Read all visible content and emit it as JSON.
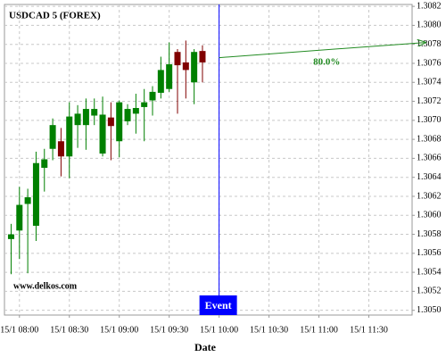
{
  "chart_data": {
    "type": "candlestick",
    "title": "USDCAD 5 (FOREX)",
    "watermark": "www.delkos.com",
    "x_label": "Date",
    "x": [
      "15/1 07:55",
      "15/1 08:00",
      "15/1 08:05",
      "15/1 08:10",
      "15/1 08:15",
      "15/1 08:20",
      "15/1 08:25",
      "15/1 08:30",
      "15/1 08:35",
      "15/1 08:40",
      "15/1 08:45",
      "15/1 08:50",
      "15/1 08:55",
      "15/1 09:00",
      "15/1 09:05",
      "15/1 09:10",
      "15/1 09:15",
      "15/1 09:20",
      "15/1 09:25",
      "15/1 09:30",
      "15/1 09:35",
      "15/1 09:40",
      "15/1 09:45",
      "15/1 09:50"
    ],
    "open": [
      1.30575,
      1.30584,
      1.30612,
      1.30589,
      1.3065,
      1.3067,
      1.30678,
      1.30662,
      1.30695,
      1.30695,
      1.30705,
      1.30665,
      1.30703,
      1.30678,
      1.30699,
      1.30707,
      1.30714,
      1.30721,
      1.30729,
      1.30733,
      1.30772,
      1.30761,
      1.3074,
      1.30773
    ],
    "high": [
      1.30591,
      1.3063,
      1.30628,
      1.30667,
      1.3067,
      1.30702,
      1.30692,
      1.30719,
      1.30716,
      1.30723,
      1.30723,
      1.30725,
      1.30719,
      1.30721,
      1.30717,
      1.30728,
      1.30733,
      1.30736,
      1.30767,
      1.30782,
      1.30775,
      1.30784,
      1.30775,
      1.30779
    ],
    "low": [
      1.30538,
      1.30554,
      1.30539,
      1.30573,
      1.30625,
      1.30658,
      1.30641,
      1.30639,
      1.30671,
      1.30669,
      1.30695,
      1.30662,
      1.30658,
      1.30661,
      1.30695,
      1.30686,
      1.30678,
      1.30705,
      1.30723,
      1.3073,
      1.30707,
      1.30723,
      1.30717,
      1.3074
    ],
    "close": [
      1.3058,
      1.30611,
      1.30619,
      1.30655,
      1.30659,
      1.30695,
      1.30662,
      1.30704,
      1.30707,
      1.30712,
      1.30712,
      1.30706,
      1.30694,
      1.30719,
      1.30712,
      1.30713,
      1.30719,
      1.3073,
      1.30753,
      1.30759,
      1.30758,
      1.30753,
      1.30772,
      1.30761
    ],
    "up_color": "#008000",
    "down_color": "#800000",
    "xlim": [
      "15/1 07:51",
      "15/1 11:56"
    ],
    "xticks": [
      "15/1 08:00",
      "15/1 08:30",
      "15/1 09:00",
      "15/1 09:30",
      "15/1 10:00",
      "15/1 10:30",
      "15/1 11:00",
      "15/1 11:30"
    ],
    "ylim": [
      1.30495,
      1.30822
    ],
    "yticks": [
      {
        "value": 1.305,
        "label": "1.3050"
      },
      1.3052,
      1.3054,
      1.3056,
      1.3058,
      {
        "value": 1.306,
        "label": "1.3060"
      },
      1.3062,
      1.3064,
      1.3066,
      1.3068,
      {
        "value": 1.307,
        "label": "1.3070"
      },
      1.3072,
      1.3074,
      1.3076,
      1.3078,
      {
        "value": 1.308,
        "label": "1.3080"
      },
      1.3082
    ],
    "grid": true,
    "event": {
      "x": "15/1 10:00",
      "label": "Event",
      "color": "#0000ff"
    },
    "arrow": {
      "from": [
        "15/1 10:00",
        1.30766
      ],
      "to": [
        "15/1 12:04",
        1.30782
      ],
      "label": "80.0%",
      "color": "#228b22"
    }
  }
}
